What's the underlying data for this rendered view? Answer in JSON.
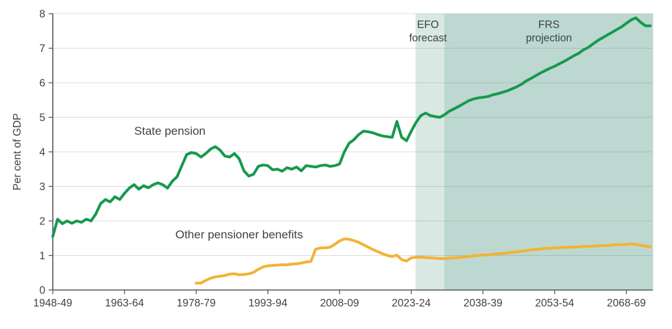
{
  "colors": {
    "background": "#ffffff",
    "axis": "#595959",
    "grid": "#646464",
    "text": "#404040",
    "state_pension_green": "#16994d",
    "other_benefits_yellow": "#f2b234",
    "efo_band": "#d9e8e3",
    "frs_band": "#bdd8d0"
  },
  "chart_data": {
    "type": "line",
    "title": "",
    "xlabel": "",
    "ylabel": "Per cent of GDP",
    "ylim": [
      0,
      8
    ],
    "yticks": [
      0,
      1,
      2,
      3,
      4,
      5,
      6,
      7,
      8
    ],
    "grid": "horizontal",
    "legend_position": "inline-labels",
    "x_ticks": [
      {
        "year": 1948,
        "label": "1948-49"
      },
      {
        "year": 1963,
        "label": "1963-64"
      },
      {
        "year": 1978,
        "label": "1978-79"
      },
      {
        "year": 1993,
        "label": "1993-94"
      },
      {
        "year": 2008,
        "label": "2008-09"
      },
      {
        "year": 2023,
        "label": "2023-24"
      },
      {
        "year": 2038,
        "label": "2038-39"
      },
      {
        "year": 2053,
        "label": "2053-54"
      },
      {
        "year": 2068,
        "label": "2068-69"
      }
    ],
    "x_range_years": [
      1948,
      2073.6
    ],
    "bands": [
      {
        "name": "efo-forecast-band",
        "label_lines": [
          "EFO",
          "forecast"
        ],
        "label_year": 2026.5,
        "from_year": 2023.9,
        "to_year": 2029.9,
        "color": "#d9e8e3"
      },
      {
        "name": "frs-projection-band",
        "label_lines": [
          "FRS",
          "projection"
        ],
        "label_year": 2051.8,
        "from_year": 2029.9,
        "to_year": 2073.6,
        "color": "#bdd8d0"
      }
    ],
    "series": [
      {
        "name": "State pension",
        "color": "#16994d",
        "start_year": 1948,
        "label_pos": {
          "year": 1972.5,
          "value": 4.5
        },
        "values": [
          1.55,
          2.05,
          1.92,
          2.0,
          1.93,
          2.0,
          1.96,
          2.05,
          2.0,
          2.2,
          2.5,
          2.62,
          2.55,
          2.7,
          2.62,
          2.8,
          2.95,
          3.05,
          2.92,
          3.02,
          2.96,
          3.05,
          3.1,
          3.05,
          2.95,
          3.15,
          3.28,
          3.6,
          3.92,
          3.98,
          3.95,
          3.85,
          3.95,
          4.08,
          4.15,
          4.05,
          3.88,
          3.85,
          3.95,
          3.8,
          3.45,
          3.3,
          3.35,
          3.58,
          3.62,
          3.6,
          3.48,
          3.5,
          3.44,
          3.54,
          3.5,
          3.56,
          3.45,
          3.6,
          3.58,
          3.56,
          3.6,
          3.62,
          3.58,
          3.6,
          3.65,
          4.0,
          4.25,
          4.35,
          4.5,
          4.6,
          4.58,
          4.55,
          4.5,
          4.46,
          4.44,
          4.42,
          4.88,
          4.42,
          4.32,
          4.6,
          4.85,
          5.05,
          5.12,
          5.05,
          5.02,
          5.0,
          5.08,
          5.18,
          5.25,
          5.32,
          5.4,
          5.48,
          5.53,
          5.56,
          5.58,
          5.6,
          5.65,
          5.68,
          5.72,
          5.76,
          5.82,
          5.88,
          5.95,
          6.05,
          6.12,
          6.2,
          6.28,
          6.35,
          6.42,
          6.48,
          6.55,
          6.62,
          6.7,
          6.78,
          6.85,
          6.95,
          7.02,
          7.12,
          7.22,
          7.3,
          7.38,
          7.46,
          7.54,
          7.62,
          7.72,
          7.82,
          7.88,
          7.75,
          7.65,
          7.65
        ]
      },
      {
        "name": "Other pensioner benefits",
        "color": "#f2b234",
        "start_year": 1978,
        "label_pos": {
          "year": 1987,
          "value": 1.5
        },
        "values": [
          0.2,
          0.2,
          0.28,
          0.34,
          0.38,
          0.4,
          0.42,
          0.46,
          0.47,
          0.44,
          0.45,
          0.47,
          0.51,
          0.6,
          0.67,
          0.7,
          0.71,
          0.72,
          0.73,
          0.73,
          0.75,
          0.76,
          0.78,
          0.81,
          0.83,
          1.18,
          1.22,
          1.22,
          1.24,
          1.32,
          1.42,
          1.48,
          1.47,
          1.43,
          1.38,
          1.31,
          1.24,
          1.17,
          1.11,
          1.05,
          1.0,
          0.97,
          1.01,
          0.88,
          0.84,
          0.93,
          0.95,
          0.95,
          0.94,
          0.93,
          0.92,
          0.91,
          0.91,
          0.92,
          0.93,
          0.94,
          0.96,
          0.97,
          0.99,
          1.0,
          1.01,
          1.02,
          1.03,
          1.05,
          1.06,
          1.07,
          1.09,
          1.1,
          1.12,
          1.14,
          1.16,
          1.17,
          1.19,
          1.2,
          1.21,
          1.22,
          1.23,
          1.23,
          1.24,
          1.24,
          1.25,
          1.26,
          1.26,
          1.27,
          1.28,
          1.29,
          1.29,
          1.3,
          1.31,
          1.31,
          1.32,
          1.33,
          1.32,
          1.3,
          1.27,
          1.25
        ]
      }
    ]
  }
}
